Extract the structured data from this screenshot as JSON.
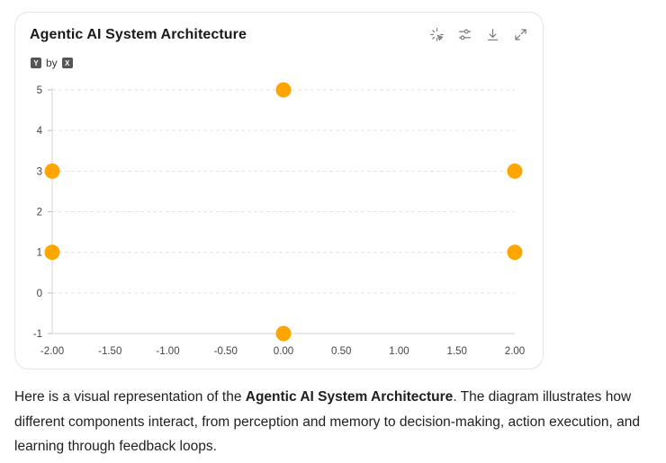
{
  "card": {
    "title": "Agentic AI System Architecture",
    "legend": {
      "y_chip": "Y",
      "by": "by",
      "x_chip": "X"
    },
    "tools": [
      "select-icon",
      "sliders-icon",
      "download-icon",
      "expand-icon"
    ]
  },
  "chart_data": {
    "type": "scatter",
    "title": "Agentic AI System Architecture",
    "xlabel": "",
    "ylabel": "",
    "xlim": [
      -2,
      2
    ],
    "ylim": [
      -1,
      5
    ],
    "x_ticks": [
      "-2.00",
      "-1.50",
      "-1.00",
      "-0.50",
      "0.00",
      "0.50",
      "1.00",
      "1.50",
      "2.00"
    ],
    "y_ticks": [
      "-1",
      "0",
      "1",
      "2",
      "3",
      "4",
      "5"
    ],
    "grid": "horizontal dashed",
    "point_color": "#FFA500",
    "points": [
      {
        "x": 0,
        "y": 5
      },
      {
        "x": -2,
        "y": 3
      },
      {
        "x": 2,
        "y": 3
      },
      {
        "x": -2,
        "y": 1
      },
      {
        "x": 2,
        "y": 1
      },
      {
        "x": 0,
        "y": -1
      }
    ]
  },
  "caption": {
    "pre": "Here is a visual representation of the ",
    "bold": "Agentic AI System Architecture",
    "post": ". The diagram illustrates how different components interact, from perception and memory to decision-making, action execution, and learning through feedback loops."
  }
}
